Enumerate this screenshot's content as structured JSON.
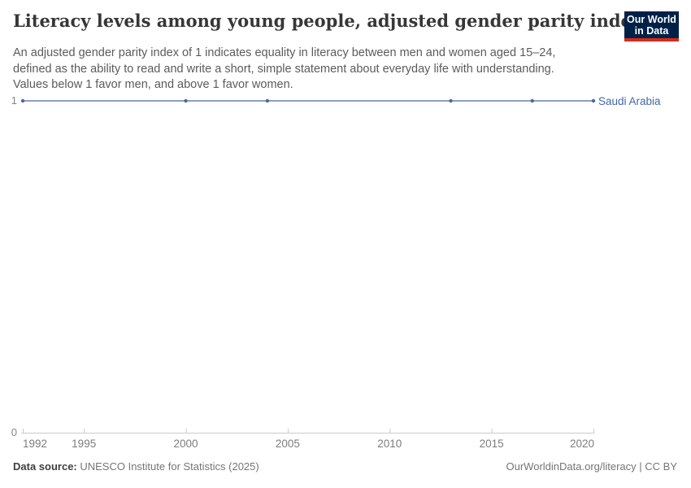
{
  "header": {
    "title": "Literacy levels among young people, adjusted gender parity index",
    "subtitle_lines": [
      "An adjusted gender parity index of 1 indicates equality in literacy between men and women aged 15–24,",
      "defined as the ability to read and write a short, simple statement about everyday life with understanding.",
      "Values below 1 favor men, and above 1 favor women."
    ],
    "logo": {
      "line1": "Our World",
      "line2": "in Data",
      "bg_color": "#002147",
      "accent_color": "#d92a1a"
    }
  },
  "chart_data": {
    "type": "line",
    "title": "Literacy levels among young people, adjusted gender parity index",
    "series": [
      {
        "name": "Saudi Arabia",
        "x": [
          1992,
          2000,
          2004,
          2013,
          2017,
          2020
        ],
        "values": [
          1,
          1,
          1,
          1,
          1,
          1
        ],
        "line_color": "#7b93bd",
        "dot_color": "#4c689f",
        "label_color": "#3f69a8"
      }
    ],
    "xlim": [
      1992,
      2020
    ],
    "ylim": [
      0,
      1
    ],
    "x_ticks": [
      1992,
      1995,
      2000,
      2005,
      2010,
      2015,
      2020
    ],
    "x_tick_labels": [
      "1992",
      "1995",
      "2000",
      "2005",
      "2010",
      "2015",
      "2020"
    ],
    "y_ticks": [
      0,
      1
    ],
    "y_tick_labels": [
      "0",
      "1"
    ],
    "grid": "y-ticks-only",
    "legend_position": "right-of-line",
    "axis_color": "#cbcbcb"
  },
  "footer": {
    "source_label": "Data source:",
    "source_value": " UNESCO Institute for Statistics (2025)",
    "right_text": "OurWorldinData.org/literacy | CC BY"
  }
}
